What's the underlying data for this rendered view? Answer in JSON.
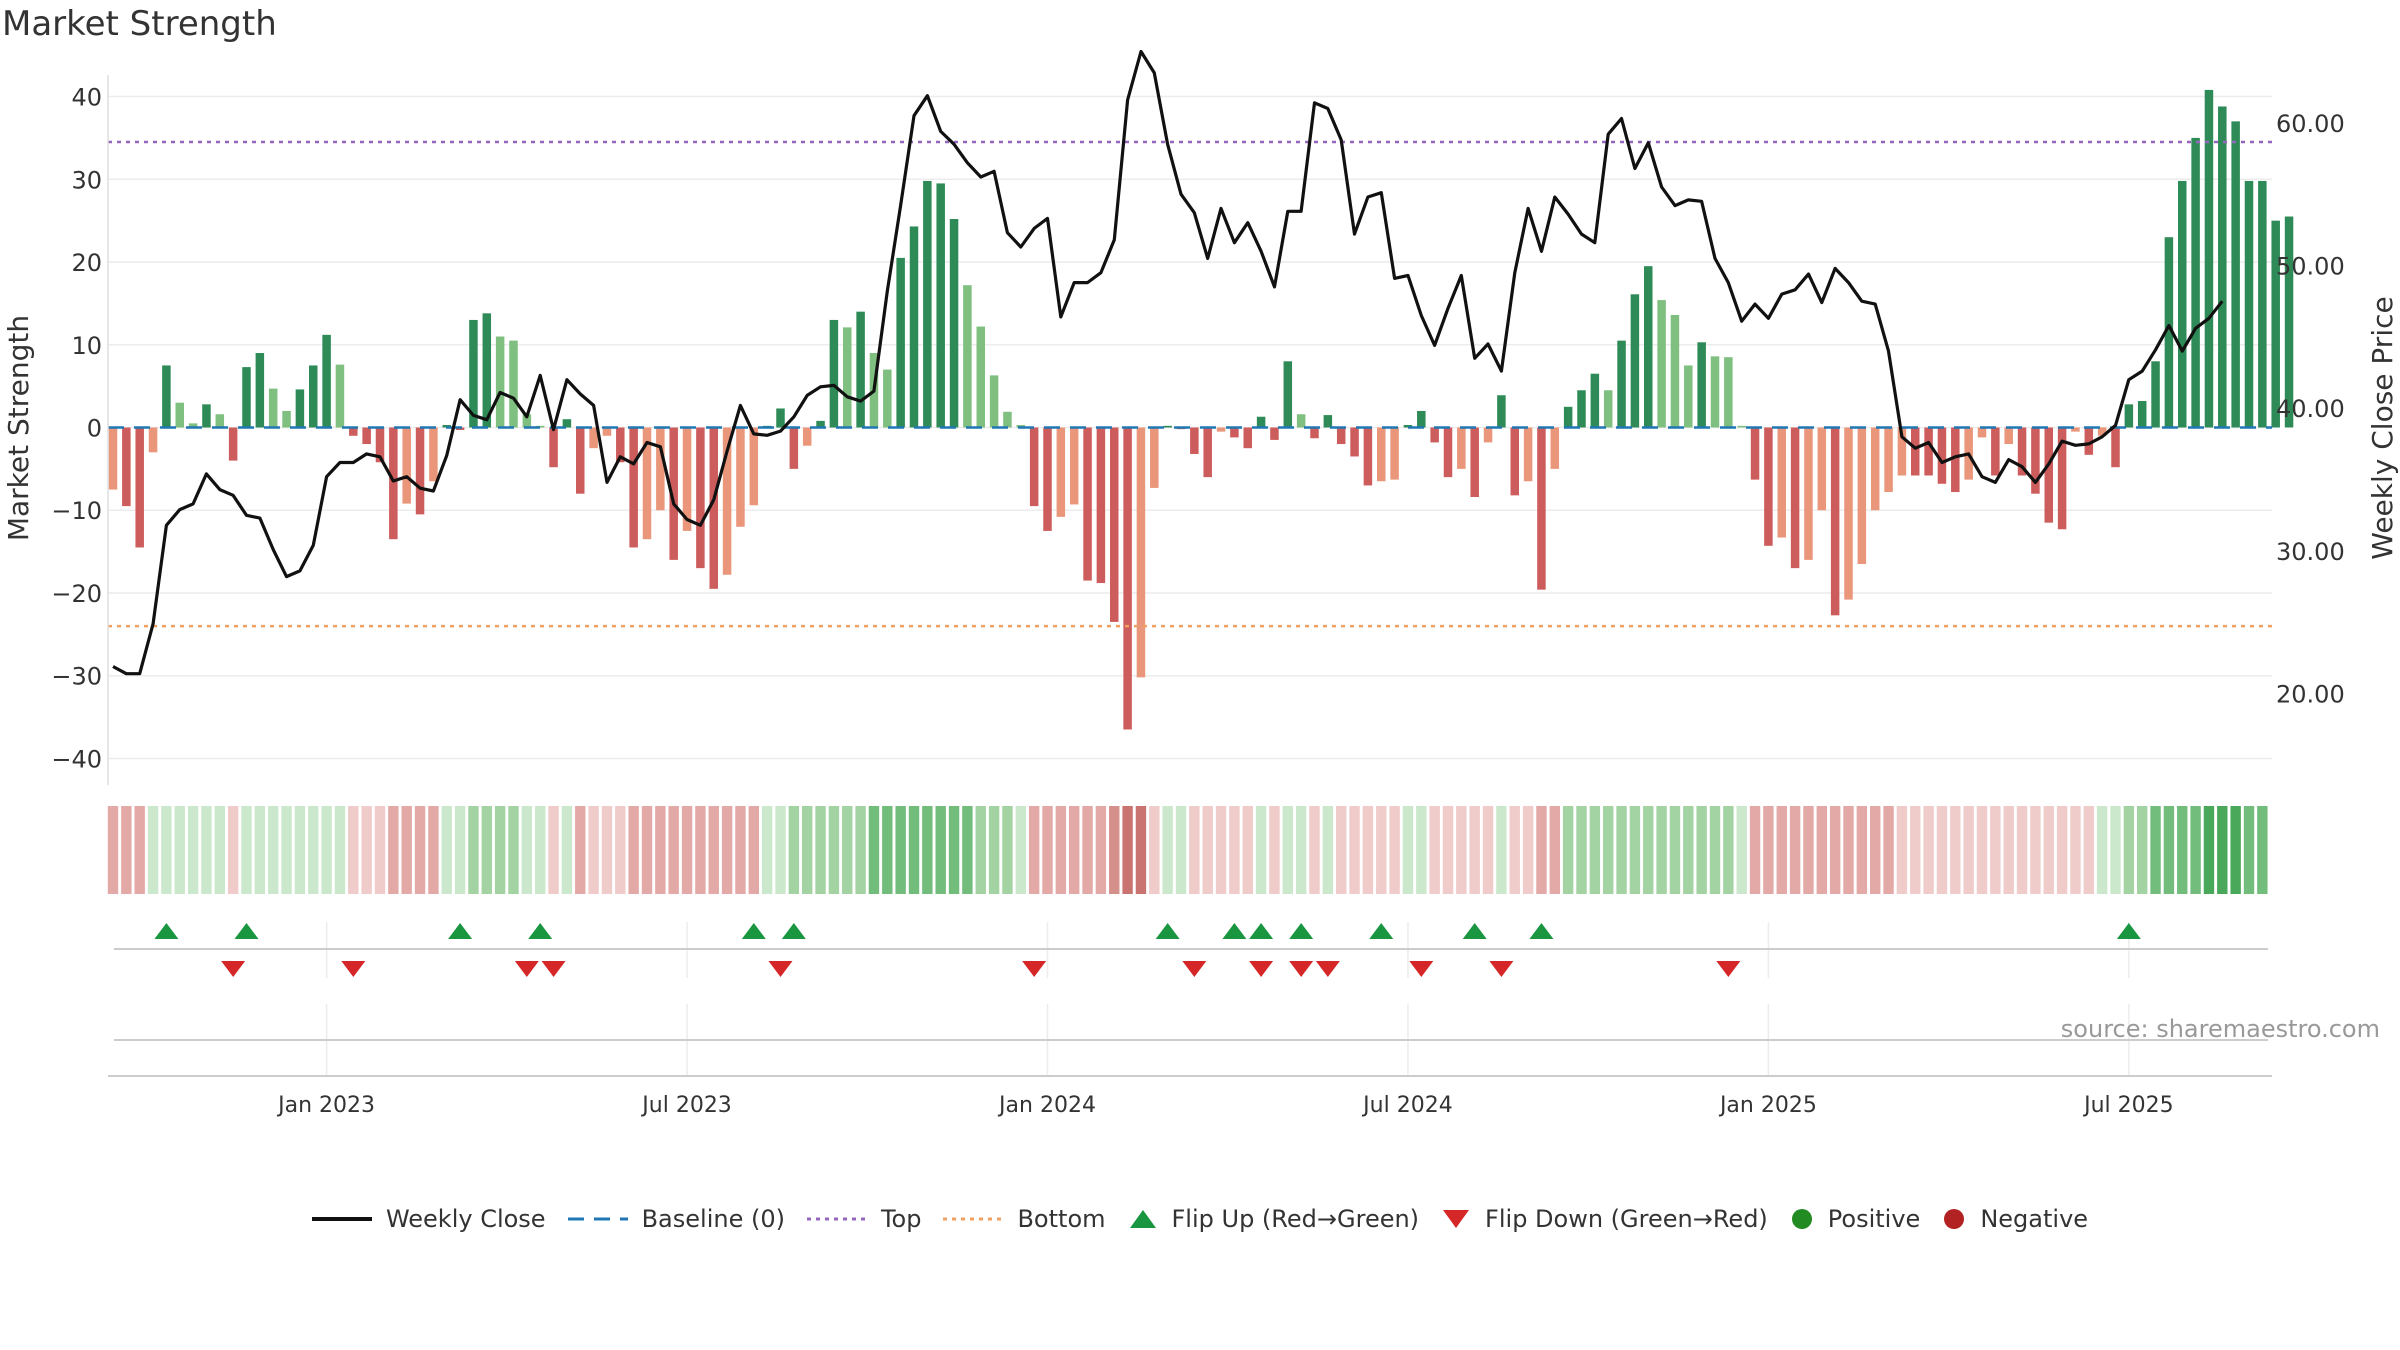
{
  "title": "Market Strength",
  "source": "source: sharemaestro.com",
  "colors": {
    "strong_green": "#2e8b57",
    "light_green": "#7fbf7f",
    "strong_red": "#cd5c5c",
    "light_red": "#e9967a",
    "close_line": "#111111",
    "baseline": "#1f77b4",
    "top": "#9467bd",
    "bottom": "#f0a060",
    "flip_up": "#1a9641",
    "flip_down": "#d62728",
    "positive": "#228b22",
    "negative": "#b22222"
  },
  "chart_data": {
    "type": "bar+line",
    "x_ticks": [
      "Jan 2023",
      "Jul 2023",
      "Jan 2024",
      "Jul 2024",
      "Jan 2025",
      "Jul 2025"
    ],
    "x_tick_week_index": [
      16,
      43,
      70,
      97,
      124,
      151
    ],
    "ylabel_left": "Market Strength",
    "ylim_left": [
      -42,
      42
    ],
    "yticks_left": [
      40,
      30,
      20,
      10,
      0,
      -10,
      -20,
      -30,
      -40
    ],
    "ylabel_right": "Weekly Close Price",
    "ylim_right": [
      14.3,
      63
    ],
    "yticks_right": [
      60,
      50,
      40,
      30,
      20
    ],
    "ytick_labels_right": [
      "60.00",
      "50.00",
      "40.00",
      "30.00",
      "20.00"
    ],
    "top_level": 34.5,
    "bottom_level": -24,
    "baseline": 0,
    "strength": [
      -7.5,
      -9.5,
      -14.5,
      -3,
      7.5,
      3,
      0.5,
      2.8,
      1.6,
      -4,
      7.3,
      9,
      4.7,
      2,
      4.6,
      7.5,
      11.2,
      7.6,
      -1,
      -2,
      -4.2,
      -13.5,
      -9.2,
      -10.5,
      -6.5,
      0.3,
      -0.3,
      13,
      13.8,
      11,
      10.5,
      1.6,
      0.2,
      -4.8,
      1,
      -8,
      -2.5,
      -1,
      -4.2,
      -14.5,
      -13.5,
      -10,
      -16,
      -12.5,
      -17,
      -19.5,
      -17.8,
      -12,
      -9.4,
      0.2,
      2.3,
      -5,
      -2.2,
      0.8,
      13,
      12.1,
      14,
      9,
      7,
      20.5,
      24.3,
      29.8,
      29.5,
      25.2,
      17.2,
      12.2,
      6.3,
      1.9,
      0.3,
      -9.5,
      -12.5,
      -10.8,
      -9.3,
      -18.5,
      -18.8,
      -23.5,
      -36.5,
      -30.2,
      -7.3,
      0.2,
      -0.2,
      -3.2,
      -6,
      -0.5,
      -1.2,
      -2.5,
      1.3,
      -1.5,
      8,
      1.6,
      -1.3,
      1.5,
      -2,
      -3.5,
      -7,
      -6.5,
      -6.3,
      0.3,
      2,
      -1.8,
      -6,
      -5,
      -8.4,
      -1.8,
      3.9,
      -8.2,
      -6.5,
      -19.6,
      -5,
      2.5,
      4.5,
      6.5,
      4.5,
      10.5,
      16.1,
      19.5,
      15.4,
      13.6,
      7.5,
      10.3,
      8.6,
      8.5,
      0.2,
      -6.3,
      -14.3,
      -13.3,
      -17,
      -16,
      -10,
      -22.7,
      -20.8,
      -16.5,
      -10,
      -7.8,
      -5.8,
      -5.8,
      -5.8,
      -6.8,
      -7.8,
      -6.3,
      -1.2,
      -5.8,
      -2,
      -5.8,
      -8,
      -11.5,
      -12.3,
      -0.5,
      -3.3,
      -1,
      -4.8,
      2.8,
      3.2,
      8,
      23,
      29.8,
      35,
      40.8,
      38.8,
      37,
      29.8,
      29.8,
      25,
      25.5
    ],
    "close": [
      21.9,
      21.4,
      21.4,
      24.9,
      31.8,
      32.9,
      33.3,
      35.4,
      34.3,
      33.9,
      32.5,
      32.3,
      30.1,
      28.2,
      28.6,
      30.4,
      35.2,
      36.2,
      36.2,
      36.8,
      36.6,
      34.9,
      35.2,
      34.4,
      34.2,
      36.7,
      40.6,
      39.5,
      39.2,
      41.1,
      40.7,
      39.4,
      42.3,
      38.5,
      42.0,
      41.0,
      40.2,
      34.8,
      36.6,
      36.1,
      37.6,
      37.3,
      33.3,
      32.2,
      31.8,
      33.6,
      37.0,
      40.2,
      38.2,
      38.1,
      38.4,
      39.4,
      40.9,
      41.5,
      41.6,
      40.8,
      40.5,
      41.2,
      48.2,
      54.2,
      60.5,
      61.9,
      59.4,
      58.5,
      57.2,
      56.2,
      56.6,
      52.3,
      51.3,
      52.6,
      53.3,
      46.4,
      48.8,
      48.8,
      49.5,
      51.8,
      61.6,
      65.0,
      63.5,
      58.5,
      55.0,
      53.7,
      50.5,
      54.0,
      51.6,
      53.0,
      51.0,
      48.5,
      53.8,
      53.8,
      61.4,
      61.0,
      58.8,
      52.2,
      54.8,
      55.1,
      49.1,
      49.3,
      46.5,
      44.4,
      47.0,
      49.3,
      43.5,
      44.5,
      42.6,
      49.5,
      54.0,
      51.0,
      54.8,
      53.6,
      52.2,
      51.6,
      59.2,
      60.3,
      56.8,
      58.6,
      55.5,
      54.2,
      54.6,
      54.5,
      50.5,
      48.8,
      46.1,
      47.3,
      46.3,
      48.0,
      48.3,
      49.4,
      47.4,
      49.8,
      48.8,
      47.5,
      47.3,
      44.0,
      38.0,
      37.2,
      37.6,
      36.2,
      36.6,
      36.8,
      35.2,
      34.8,
      36.4,
      35.9,
      34.8,
      36.1,
      37.7,
      37.4,
      37.5,
      38.0,
      38.8,
      42.0,
      42.6,
      44.1,
      45.8,
      44.0,
      45.6,
      46.3,
      47.5
    ]
  },
  "bands": {
    "levels": [
      -2,
      -2,
      -2,
      1,
      1,
      1,
      1,
      1,
      1,
      -1,
      1,
      1,
      1,
      1,
      1,
      1,
      1,
      1,
      -1,
      -1,
      -1,
      -2,
      -2,
      -2,
      -2,
      1,
      1,
      2,
      2,
      2,
      2,
      1,
      1,
      -1,
      1,
      -2,
      -1,
      -1,
      -1,
      -2,
      -2,
      -2,
      -2,
      -2,
      -2,
      -2,
      -2,
      -2,
      -2,
      1,
      1,
      2,
      2,
      2,
      2,
      2,
      2,
      3,
      3,
      3,
      3,
      3,
      3,
      3,
      3,
      2,
      2,
      2,
      1,
      -2,
      -2,
      -2,
      -2,
      -2,
      -2,
      -3,
      -4,
      -4,
      -1,
      1,
      1,
      -1,
      -1,
      -1,
      -1,
      -1,
      1,
      -1,
      1,
      1,
      -1,
      1,
      -1,
      -1,
      -1,
      -1,
      -1,
      1,
      1,
      -1,
      -1,
      -1,
      -1,
      -1,
      1,
      -1,
      -1,
      -2,
      -2,
      2,
      2,
      2,
      2,
      2,
      2,
      2,
      2,
      2,
      2,
      2,
      2,
      2,
      1,
      -2,
      -2,
      -2,
      -2,
      -2,
      -2,
      -2,
      -2,
      -2,
      -2,
      -2,
      -1,
      -1,
      -1,
      -1,
      -1,
      -1,
      -1,
      -1,
      -1,
      -1,
      -1,
      -1,
      -1,
      -1,
      -1,
      1,
      1,
      2,
      2,
      3,
      3,
      3,
      3,
      4,
      4,
      4,
      3,
      3
    ]
  },
  "flips": {
    "up": [
      4,
      10,
      26,
      32,
      48,
      51,
      79,
      84,
      86,
      89,
      95,
      102,
      107,
      151
    ],
    "down": [
      9,
      18,
      31,
      33,
      50,
      69,
      81,
      86,
      89,
      91,
      98,
      104,
      121
    ]
  },
  "legend": {
    "weekly_close": "Weekly Close",
    "baseline": "Baseline (0)",
    "top": "Top",
    "bottom": "Bottom",
    "flip_up": "Flip Up (Red→Green)",
    "flip_down": "Flip Down (Green→Red)",
    "positive": "Positive",
    "negative": "Negative"
  }
}
